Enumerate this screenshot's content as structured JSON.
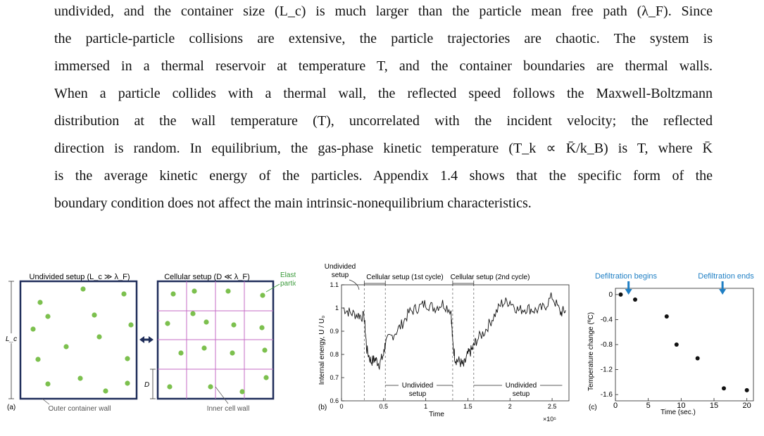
{
  "paragraph": {
    "lines": [
      "undivided, and the container size (L_c) is much larger than the particle mean free path (λ_F). Since",
      "the particle-particle collisions are extensive, the particle trajectories are chaotic. The system is",
      "immersed in a thermal reservoir at temperature T, and the container boundaries are thermal walls.",
      "When a particle collides with a thermal wall, the reflected speed follows the Maxwell-Boltzmann",
      "distribution at the wall temperature (T), uncorrelated with the incident velocity; the reflected",
      "direction is random. In equilibrium, the gas-phase kinetic temperature (T_k ∝ K̄/k_B) is T, where K̄",
      "is the average kinetic energy of the particles. Appendix 1.4 shows that the specific form of the",
      "boundary condition does not affect the main intrinsic-nonequilibrium characteristics."
    ]
  },
  "panel_a": {
    "label": "(a)",
    "undivided_title": "Undivided setup (L_c ≫ λ_F)",
    "cellular_title": "Cellular setup (D ≪ λ_F)",
    "lc_label": "L_c",
    "d_label": "D",
    "elastic_label_1": "Elastic",
    "elastic_label_2": "particle",
    "outer_wall_label": "Outer container wall",
    "inner_wall_label": "Inner cell wall",
    "particle_color": "#7cc04e",
    "wall_color": "#1f2d5a",
    "cell_color": "#c66bc6"
  },
  "panel_b": {
    "label": "(b)",
    "undivided_top_1": "Undivided",
    "undivided_top_2": "setup",
    "cellular_1": "Cellular setup (1st cycle)",
    "cellular_2": "Cellular setup (2nd cycle)",
    "undivided_mid_1": "Undivided",
    "undivided_mid_2": "setup",
    "undivided_right_1": "Undivided",
    "undivided_right_2": "setup",
    "ylabel": "Internal energy, U / U₀",
    "xlabel": "Time",
    "x_multiplier": "×10⁵",
    "yticks": [
      "0.6",
      "0.7",
      "0.8",
      "0.9",
      "1",
      "1.1"
    ],
    "xticks": [
      "0",
      "0.5",
      "1",
      "1.5",
      "2",
      "2.5"
    ]
  },
  "panel_c": {
    "label": "(c)",
    "begins_label": "Defiltration begins",
    "ends_label": "Defiltration ends",
    "ylabel": "Temperature change (ºC)",
    "xlabel": "Time (sec.)",
    "accent": "#1f7fc4",
    "yticks": [
      "0",
      "-0.4",
      "-0.8",
      "-1.2",
      "-1.6"
    ],
    "xticks": [
      "0",
      "5",
      "10",
      "15",
      "20"
    ]
  },
  "chart_data": [
    {
      "type": "line",
      "xlabel": "Time",
      "ylabel": "Internal energy, U / U₀",
      "xlim": [
        0,
        2.7
      ],
      "ylim": [
        0.6,
        1.1
      ],
      "x_scale_note": "×10⁵",
      "series": [
        {
          "x": [
            0.02,
            0.1,
            0.2,
            0.27,
            0.3,
            0.35,
            0.4,
            0.45,
            0.5,
            0.52,
            0.6,
            0.7,
            0.8,
            0.9,
            1.0,
            1.1,
            1.2,
            1.3,
            1.32,
            1.35,
            1.4,
            1.45,
            1.5,
            1.55,
            1.6,
            1.7,
            1.8,
            1.9,
            2.0,
            2.1,
            2.2,
            2.3,
            2.4,
            2.5,
            2.6,
            2.66
          ],
          "y": [
            1.0,
            0.98,
            0.97,
            0.96,
            0.82,
            0.77,
            0.78,
            0.76,
            0.8,
            0.85,
            0.88,
            0.92,
            0.98,
            1.0,
            1.02,
            1.0,
            1.02,
            0.99,
            0.85,
            0.78,
            0.77,
            0.75,
            0.8,
            0.82,
            0.86,
            0.9,
            0.96,
            1.02,
            1.03,
            0.99,
            1.0,
            0.99,
            1.0,
            1.05,
            0.98,
            0.99
          ]
        }
      ]
    },
    {
      "type": "scatter",
      "xlabel": "Time (sec.)",
      "ylabel": "Temperature change (ºC)",
      "xlim": [
        0,
        21
      ],
      "ylim": [
        -1.7,
        0.1
      ],
      "series": [
        {
          "x": [
            0.8,
            3,
            7.8,
            9.3,
            12.5,
            16.5,
            20
          ],
          "y": [
            0.0,
            -0.08,
            -0.35,
            -0.8,
            -1.02,
            -1.5,
            -1.53
          ]
        }
      ],
      "annotations": [
        {
          "text": "Defiltration begins",
          "x": 2
        },
        {
          "text": "Defiltration ends",
          "x": 16.3
        }
      ]
    }
  ]
}
